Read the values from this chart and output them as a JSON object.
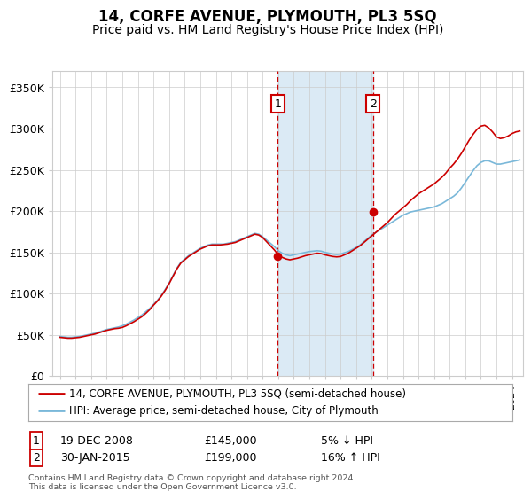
{
  "title": "14, CORFE AVENUE, PLYMOUTH, PL3 5SQ",
  "subtitle": "Price paid vs. HM Land Registry's House Price Index (HPI)",
  "title_fontsize": 12,
  "subtitle_fontsize": 10,
  "ylabel_ticks": [
    "£0",
    "£50K",
    "£100K",
    "£150K",
    "£200K",
    "£250K",
    "£300K",
    "£350K"
  ],
  "ytick_values": [
    0,
    50000,
    100000,
    150000,
    200000,
    250000,
    300000,
    350000
  ],
  "ylim": [
    0,
    370000
  ],
  "xlim_start": 1994.5,
  "xlim_end": 2024.7,
  "sale1_date": 2008.97,
  "sale1_price": 145000,
  "sale1_label": "1",
  "sale1_text": "19-DEC-2008",
  "sale1_amount": "£145,000",
  "sale1_hpi": "5% ↓ HPI",
  "sale2_date": 2015.08,
  "sale2_price": 199000,
  "sale2_label": "2",
  "sale2_text": "30-JAN-2015",
  "sale2_amount": "£199,000",
  "sale2_hpi": "16% ↑ HPI",
  "hpi_line_color": "#7ab8d9",
  "price_line_color": "#cc0000",
  "shade_color": "#dbeaf5",
  "vline_color": "#cc0000",
  "marker_box_color": "#cc0000",
  "legend_line1": "14, CORFE AVENUE, PLYMOUTH, PL3 5SQ (semi-detached house)",
  "legend_line2": "HPI: Average price, semi-detached house, City of Plymouth",
  "footer": "Contains HM Land Registry data © Crown copyright and database right 2024.\nThis data is licensed under the Open Government Licence v3.0.",
  "background_color": "#ffffff",
  "grid_color": "#cccccc",
  "years_hpi": [
    1995.0,
    1995.25,
    1995.5,
    1995.75,
    1996.0,
    1996.25,
    1996.5,
    1996.75,
    1997.0,
    1997.25,
    1997.5,
    1997.75,
    1998.0,
    1998.25,
    1998.5,
    1998.75,
    1999.0,
    1999.25,
    1999.5,
    1999.75,
    2000.0,
    2000.25,
    2000.5,
    2000.75,
    2001.0,
    2001.25,
    2001.5,
    2001.75,
    2002.0,
    2002.25,
    2002.5,
    2002.75,
    2003.0,
    2003.25,
    2003.5,
    2003.75,
    2004.0,
    2004.25,
    2004.5,
    2004.75,
    2005.0,
    2005.25,
    2005.5,
    2005.75,
    2006.0,
    2006.25,
    2006.5,
    2006.75,
    2007.0,
    2007.25,
    2007.5,
    2007.75,
    2008.0,
    2008.25,
    2008.5,
    2008.75,
    2009.0,
    2009.25,
    2009.5,
    2009.75,
    2010.0,
    2010.25,
    2010.5,
    2010.75,
    2011.0,
    2011.25,
    2011.5,
    2011.75,
    2012.0,
    2012.25,
    2012.5,
    2012.75,
    2013.0,
    2013.25,
    2013.5,
    2013.75,
    2014.0,
    2014.25,
    2014.5,
    2014.75,
    2015.0,
    2015.25,
    2015.5,
    2015.75,
    2016.0,
    2016.25,
    2016.5,
    2016.75,
    2017.0,
    2017.25,
    2017.5,
    2017.75,
    2018.0,
    2018.25,
    2018.5,
    2018.75,
    2019.0,
    2019.25,
    2019.5,
    2019.75,
    2020.0,
    2020.25,
    2020.5,
    2020.75,
    2021.0,
    2021.25,
    2021.5,
    2021.75,
    2022.0,
    2022.25,
    2022.5,
    2022.75,
    2023.0,
    2023.25,
    2023.5,
    2023.75,
    2024.0,
    2024.25,
    2024.5
  ],
  "hpi_values": [
    48000,
    47500,
    47000,
    47000,
    47500,
    48000,
    49000,
    50000,
    51000,
    52000,
    53500,
    55000,
    56500,
    57500,
    58500,
    59500,
    61000,
    63000,
    65500,
    68000,
    71000,
    74000,
    78000,
    82000,
    87000,
    92000,
    98000,
    105000,
    113000,
    122000,
    131000,
    138000,
    142000,
    146000,
    149000,
    152000,
    155000,
    157000,
    159000,
    160000,
    160000,
    160000,
    160000,
    161000,
    162000,
    163000,
    165000,
    167000,
    169000,
    171000,
    173000,
    172000,
    169000,
    165000,
    161000,
    157000,
    152000,
    149000,
    147000,
    146000,
    147000,
    148000,
    149000,
    150000,
    151000,
    151500,
    152000,
    151500,
    150000,
    149000,
    148000,
    147500,
    148000,
    149500,
    151000,
    153500,
    156000,
    159000,
    163000,
    167000,
    171000,
    174000,
    177000,
    180000,
    183000,
    186000,
    189000,
    192000,
    195000,
    197000,
    199000,
    200000,
    201000,
    202000,
    203000,
    204000,
    205000,
    207000,
    209000,
    212000,
    215000,
    218000,
    222000,
    228000,
    235000,
    242000,
    249000,
    255000,
    259000,
    261000,
    261000,
    259000,
    257000,
    257000,
    258000,
    259000,
    260000,
    261000,
    262000
  ],
  "red_values": [
    47000,
    46500,
    46000,
    46000,
    46500,
    47000,
    48000,
    49000,
    50000,
    51000,
    52500,
    54000,
    55500,
    56500,
    57500,
    58000,
    59000,
    61000,
    63500,
    66000,
    69000,
    72000,
    76000,
    80500,
    86000,
    91000,
    97000,
    104000,
    112000,
    121000,
    130000,
    137000,
    141000,
    145000,
    148000,
    151000,
    154000,
    156000,
    158000,
    159000,
    159000,
    159000,
    159500,
    160000,
    161000,
    162000,
    164000,
    166000,
    168000,
    170000,
    172000,
    171000,
    168000,
    163000,
    158000,
    153000,
    147000,
    144000,
    142000,
    141000,
    142000,
    143000,
    144500,
    146000,
    147000,
    148000,
    149000,
    148500,
    147000,
    146000,
    145000,
    144500,
    145000,
    147000,
    149000,
    152000,
    155000,
    158000,
    162000,
    166000,
    170000,
    174000,
    178000,
    182000,
    186000,
    191000,
    196000,
    200000,
    204000,
    208000,
    213000,
    217000,
    221000,
    224000,
    227000,
    230000,
    233000,
    237000,
    241000,
    246000,
    252000,
    257000,
    263000,
    270000,
    278000,
    286000,
    293000,
    299000,
    303000,
    304000,
    301000,
    296000,
    290000,
    288000,
    289000,
    291000,
    294000,
    296000,
    297000
  ]
}
